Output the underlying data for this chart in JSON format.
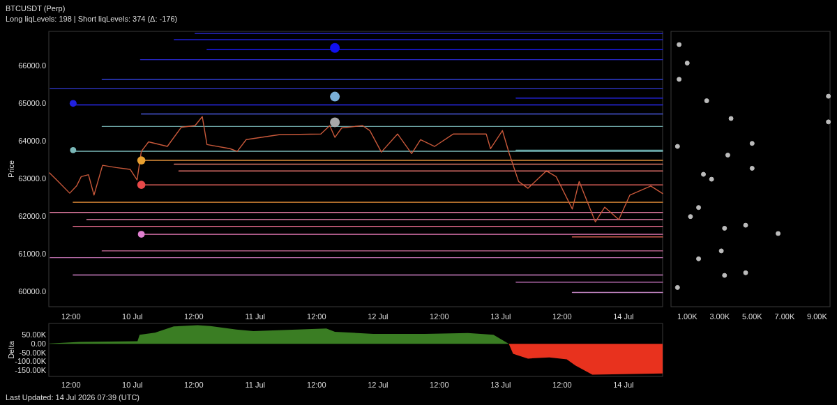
{
  "chart_data": [
    {
      "type": "line",
      "title": "BTCUSDT (Perp)",
      "subtitle": "Long liqLevels: 198 | Short liqLevels: 374 (Δ: -176)",
      "ylabel": "Price",
      "xlim": [
        "2026-07-09T07:40",
        "2026-07-14T07:39"
      ],
      "xticks": [
        {
          "value": "2026-07-09T12:00",
          "label": "12:00"
        },
        {
          "value": "2026-07-10T00:00",
          "label": "10 Jul"
        },
        {
          "value": "2026-07-10T12:00",
          "label": "12:00"
        },
        {
          "value": "2026-07-11T00:00",
          "label": "11 Jul"
        },
        {
          "value": "2026-07-11T12:00",
          "label": "12:00"
        },
        {
          "value": "2026-07-12T00:00",
          "label": "12 Jul"
        },
        {
          "value": "2026-07-12T12:00",
          "label": "12:00"
        },
        {
          "value": "2026-07-13T00:00",
          "label": "13 Jul"
        },
        {
          "value": "2026-07-13T12:00",
          "label": "12:00"
        },
        {
          "value": "2026-07-14T00:00",
          "label": "14 Jul"
        }
      ],
      "ylim": [
        59600,
        66900
      ],
      "yticks": [
        {
          "value": 60000,
          "label": "60000.0"
        },
        {
          "value": 61000,
          "label": "61000.0"
        },
        {
          "value": 62000,
          "label": "62000.0"
        },
        {
          "value": 63000,
          "label": "63000.0"
        },
        {
          "value": 64000,
          "label": "64000.0"
        },
        {
          "value": 65000,
          "label": "65000.0"
        },
        {
          "value": 66000,
          "label": "66000.0"
        }
      ],
      "grid": false,
      "series": [
        {
          "color": "#2b2bd0",
          "x": [
            "2026-07-10T12:15",
            "2026-07-14T07:39"
          ],
          "values": [
            66850,
            66850
          ]
        },
        {
          "color": "#2020e0",
          "x": [
            "2026-07-10T08:10",
            "2026-07-14T07:39"
          ],
          "values": [
            66680,
            66680
          ]
        },
        {
          "color": "#1a1af0",
          "x": [
            "2026-07-10T14:35",
            "2026-07-14T07:39"
          ],
          "values": [
            66420,
            66420
          ]
        },
        {
          "color": "#2a2ad8",
          "x": [
            "2026-07-10T01:35",
            "2026-07-14T07:39"
          ],
          "values": [
            66150,
            66150
          ]
        },
        {
          "color": "#3040d8",
          "x": [
            "2026-07-09T18:05",
            "2026-07-14T07:39"
          ],
          "values": [
            65630,
            65630
          ]
        },
        {
          "color": "#2a30b0",
          "x": [
            "2026-07-09T07:55",
            "2026-07-14T07:39"
          ],
          "values": [
            65390,
            65390
          ]
        },
        {
          "color": "#2525e8",
          "x": [
            "2026-07-13T03:00",
            "2026-07-14T07:39"
          ],
          "values": [
            65130,
            65130
          ]
        },
        {
          "color": "#2a2af0",
          "x": [
            "2026-07-09T12:25",
            "2026-07-14T07:39"
          ],
          "values": [
            64950,
            64950
          ]
        },
        {
          "color": "#4a5ae0",
          "x": [
            "2026-07-10T01:45",
            "2026-07-14T07:39"
          ],
          "values": [
            64710,
            64710
          ]
        },
        {
          "color": "#6aa0a0",
          "x": [
            "2026-07-09T18:05",
            "2026-07-14T07:39"
          ],
          "values": [
            64380,
            64380
          ]
        },
        {
          "color": "#6ab0b0",
          "x": [
            "2026-07-13T03:00",
            "2026-07-14T07:39"
          ],
          "values": [
            63750,
            63750
          ]
        },
        {
          "color": "#7ab8b8",
          "x": [
            "2026-07-09T12:25",
            "2026-07-14T07:39"
          ],
          "values": [
            63720,
            63720
          ]
        },
        {
          "color": "#e0903a",
          "x": [
            "2026-07-10T01:45",
            "2026-07-14T07:39"
          ],
          "values": [
            63480,
            63480
          ]
        },
        {
          "color": "#e07a6a",
          "x": [
            "2026-07-10T08:10",
            "2026-07-14T07:39"
          ],
          "values": [
            63380,
            63380
          ]
        },
        {
          "color": "#e0706a",
          "x": [
            "2026-07-10T09:05",
            "2026-07-14T07:39"
          ],
          "values": [
            63200,
            63200
          ]
        },
        {
          "color": "#e0605a",
          "x": [
            "2026-07-10T01:45",
            "2026-07-14T07:39"
          ],
          "values": [
            62830,
            62830
          ]
        },
        {
          "color": "#e8903a",
          "x": [
            "2026-07-09T12:25",
            "2026-07-14T07:39"
          ],
          "values": [
            62370,
            62370
          ]
        },
        {
          "color": "#e07aa0",
          "x": [
            "2026-07-09T07:55",
            "2026-07-14T07:39"
          ],
          "values": [
            62100,
            62100
          ]
        },
        {
          "color": "#e080a8",
          "x": [
            "2026-07-09T15:05",
            "2026-07-14T07:39"
          ],
          "values": [
            61910,
            61910
          ]
        },
        {
          "color": "#e06a8a",
          "x": [
            "2026-07-09T12:25",
            "2026-07-14T07:39"
          ],
          "values": [
            61730,
            61730
          ]
        },
        {
          "color": "#e87ab8",
          "x": [
            "2026-07-10T01:45",
            "2026-07-14T07:39"
          ],
          "values": [
            61520,
            61520
          ]
        },
        {
          "color": "#f06a5a",
          "x": [
            "2026-07-13T14:00",
            "2026-07-14T07:39"
          ],
          "values": [
            61450,
            61450
          ]
        },
        {
          "color": "#d070a0",
          "x": [
            "2026-07-09T18:05",
            "2026-07-14T07:39"
          ],
          "values": [
            61080,
            61080
          ]
        },
        {
          "color": "#c070b0",
          "x": [
            "2026-07-09T07:55",
            "2026-07-14T07:39"
          ],
          "values": [
            60900,
            60900
          ]
        },
        {
          "color": "#d080c8",
          "x": [
            "2026-07-09T12:25",
            "2026-07-14T07:39"
          ],
          "values": [
            60440,
            60440
          ]
        },
        {
          "color": "#d07ac8",
          "x": [
            "2026-07-13T03:00",
            "2026-07-14T07:39"
          ],
          "values": [
            60250,
            60250
          ]
        },
        {
          "color": "#c888c8",
          "x": [
            "2026-07-13T14:00",
            "2026-07-14T07:39"
          ],
          "values": [
            59980,
            59980
          ]
        },
        {
          "color": "#c8583a",
          "x": [
            "2026-07-09T07:48",
            "2026-07-09T09:25",
            "2026-07-09T11:45",
            "2026-07-09T13:05",
            "2026-07-09T14:00",
            "2026-07-09T15:25",
            "2026-07-09T16:30",
            "2026-07-09T18:10",
            "2026-07-09T20:50",
            "2026-07-09T23:35",
            "2026-07-10T00:55",
            "2026-07-10T01:45",
            "2026-07-10T03:10",
            "2026-07-10T06:50",
            "2026-07-10T09:35",
            "2026-07-10T12:15",
            "2026-07-10T13:40",
            "2026-07-10T14:35",
            "2026-07-10T19:05",
            "2026-07-10T20:30",
            "2026-07-10T22:15",
            "2026-07-11T04:40",
            "2026-07-11T12:50",
            "2026-07-11T14:35",
            "2026-07-11T15:35",
            "2026-07-11T16:55",
            "2026-07-11T21:00",
            "2026-07-11T22:25",
            "2026-07-12T00:40",
            "2026-07-12T03:50",
            "2026-07-12T06:35",
            "2026-07-12T08:20",
            "2026-07-12T11:05",
            "2026-07-12T14:45",
            "2026-07-12T21:10",
            "2026-07-12T22:00",
            "2026-07-13T00:20",
            "2026-07-13T01:40",
            "2026-07-13T03:30",
            "2026-07-13T05:20",
            "2026-07-13T08:55",
            "2026-07-13T10:50",
            "2026-07-13T14:00",
            "2026-07-13T15:20",
            "2026-07-13T18:30",
            "2026-07-13T20:20",
            "2026-07-13T23:05",
            "2026-07-14T01:15",
            "2026-07-14T05:20",
            "2026-07-14T07:39"
          ],
          "values": [
            63150,
            62930,
            62610,
            62800,
            63050,
            63100,
            62560,
            63350,
            63290,
            63240,
            62960,
            63720,
            63970,
            63850,
            64360,
            64400,
            64640,
            63900,
            63790,
            63720,
            64030,
            64160,
            64180,
            64400,
            64090,
            64340,
            64400,
            64270,
            63700,
            64180,
            63660,
            64030,
            63850,
            64180,
            64180,
            63790,
            64270,
            63660,
            62920,
            62740,
            63200,
            63050,
            62190,
            62920,
            61850,
            62240,
            61910,
            62560,
            62800,
            62600
          ]
        },
        {
          "type": "bubble",
          "x": [
            "2026-07-11T15:35",
            "2026-07-11T15:35",
            "2026-07-11T15:35",
            "2026-07-10T01:45",
            "2026-07-10T01:45",
            "2026-07-10T01:45",
            "2026-07-09T12:25",
            "2026-07-09T12:25"
          ],
          "values": [
            66460,
            65170,
            64490,
            63480,
            62830,
            61520,
            64990,
            63750
          ],
          "sizes": [
            1,
            1,
            1,
            0.7,
            0.7,
            0.5,
            0.5,
            0.4
          ],
          "colors": [
            "#1010f0",
            "#7ab0d8",
            "#a8a8a8",
            "#e8a030",
            "#e84848",
            "#e080d0",
            "#2020e0",
            "#7ab8b8"
          ]
        }
      ]
    },
    {
      "type": "scatter",
      "xlim": [
        0,
        9800
      ],
      "xticks": [
        {
          "value": 1000,
          "label": "1.00K"
        },
        {
          "value": 3000,
          "label": "3.00K"
        },
        {
          "value": 5000,
          "label": "5.00K"
        },
        {
          "value": 7000,
          "label": "7.00K"
        },
        {
          "value": 9000,
          "label": "9.00K"
        }
      ],
      "ylim": [
        59600,
        66900
      ],
      "tick_labels": "x",
      "grid": false,
      "marker": "circle",
      "series": [
        {
          "color": "#bbbbbb",
          "x": [
            9700,
            9700,
            5000,
            3500,
            5000,
            2000,
            2500,
            4600,
            6600,
            3300,
            3100,
            4600,
            3300,
            3700,
            2200,
            1700,
            1700,
            1200,
            500,
            1000,
            500,
            400,
            400
          ],
          "values": [
            65180,
            64500,
            63930,
            63620,
            63270,
            63110,
            62980,
            61760,
            61540,
            61680,
            61080,
            60500,
            60430,
            64590,
            65060,
            60870,
            62230,
            61990,
            66550,
            66060,
            65630,
            63850,
            60110
          ]
        }
      ]
    },
    {
      "type": "area",
      "ylabel": "Delta",
      "xlim": [
        "2026-07-09T07:40",
        "2026-07-14T07:39"
      ],
      "xticks": [
        {
          "value": "2026-07-09T12:00",
          "label": "12:00"
        },
        {
          "value": "2026-07-10T00:00",
          "label": "10 Jul"
        },
        {
          "value": "2026-07-10T12:00",
          "label": "12:00"
        },
        {
          "value": "2026-07-11T00:00",
          "label": "11 Jul"
        },
        {
          "value": "2026-07-11T12:00",
          "label": "12:00"
        },
        {
          "value": "2026-07-12T00:00",
          "label": "12 Jul"
        },
        {
          "value": "2026-07-12T12:00",
          "label": "12:00"
        },
        {
          "value": "2026-07-13T00:00",
          "label": "13 Jul"
        },
        {
          "value": "2026-07-13T12:00",
          "label": "12:00"
        },
        {
          "value": "2026-07-14T00:00",
          "label": "14 Jul"
        }
      ],
      "ylim": [
        -185000,
        115000
      ],
      "yticks": [
        {
          "value": -150000,
          "label": "-150.00K"
        },
        {
          "value": -100000,
          "label": "-100.00K"
        },
        {
          "value": -50000,
          "label": "-50.00K"
        },
        {
          "value": 0,
          "label": "0.00"
        },
        {
          "value": 50000,
          "label": "50.00K"
        }
      ],
      "grid": false,
      "annotations": [
        "Last Updated: 14 Jul 2026 07:39 (UTC)"
      ],
      "series": [
        {
          "color": "#3a7d23",
          "x": [
            "2026-07-09T07:48",
            "2026-07-09T13:40",
            "2026-07-10T01:00",
            "2026-07-10T01:25",
            "2026-07-10T04:25",
            "2026-07-10T08:05",
            "2026-07-10T12:45",
            "2026-07-10T15:15",
            "2026-07-10T20:20",
            "2026-07-10T23:40",
            "2026-07-11T13:55",
            "2026-07-11T15:35",
            "2026-07-11T23:05",
            "2026-07-12T09:10",
            "2026-07-12T17:35",
            "2026-07-12T22:35",
            "2026-07-13T01:35"
          ],
          "values": [
            2000,
            10000,
            14000,
            51000,
            63000,
            98000,
            105000,
            100000,
            80000,
            72000,
            86000,
            68000,
            56000,
            56000,
            61000,
            51000,
            0
          ]
        },
        {
          "color": "#e8321e",
          "x": [
            "2026-07-13T01:35",
            "2026-07-13T02:25",
            "2026-07-13T05:20",
            "2026-07-13T09:30",
            "2026-07-13T12:55",
            "2026-07-13T14:35",
            "2026-07-13T17:55",
            "2026-07-14T07:39"
          ],
          "values": [
            0,
            -57000,
            -84000,
            -77000,
            -88000,
            -123000,
            -175000,
            -168000
          ]
        }
      ]
    }
  ]
}
